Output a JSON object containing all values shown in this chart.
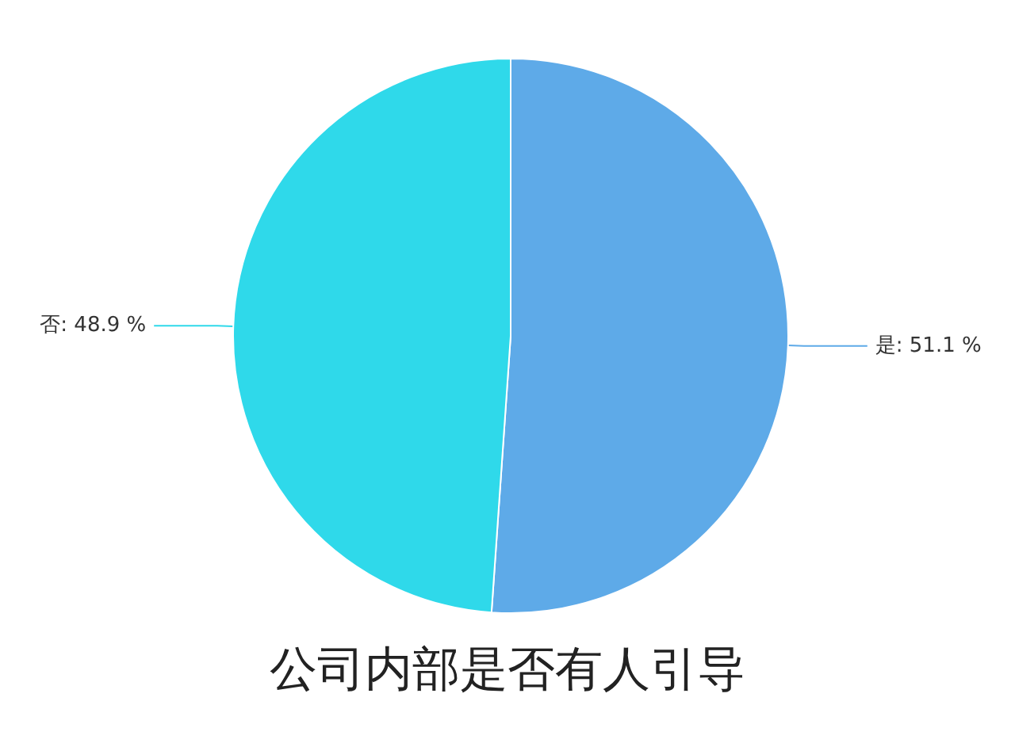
{
  "chart_data": {
    "type": "pie",
    "title": "公司内部是否有人引导",
    "categories": [
      "是",
      "否"
    ],
    "values": [
      51.1,
      48.9
    ],
    "colors": [
      "#5eaae8",
      "#2fd9ea"
    ],
    "value_labels": [
      "51.1 %",
      "48.9 %"
    ],
    "legend": false
  }
}
